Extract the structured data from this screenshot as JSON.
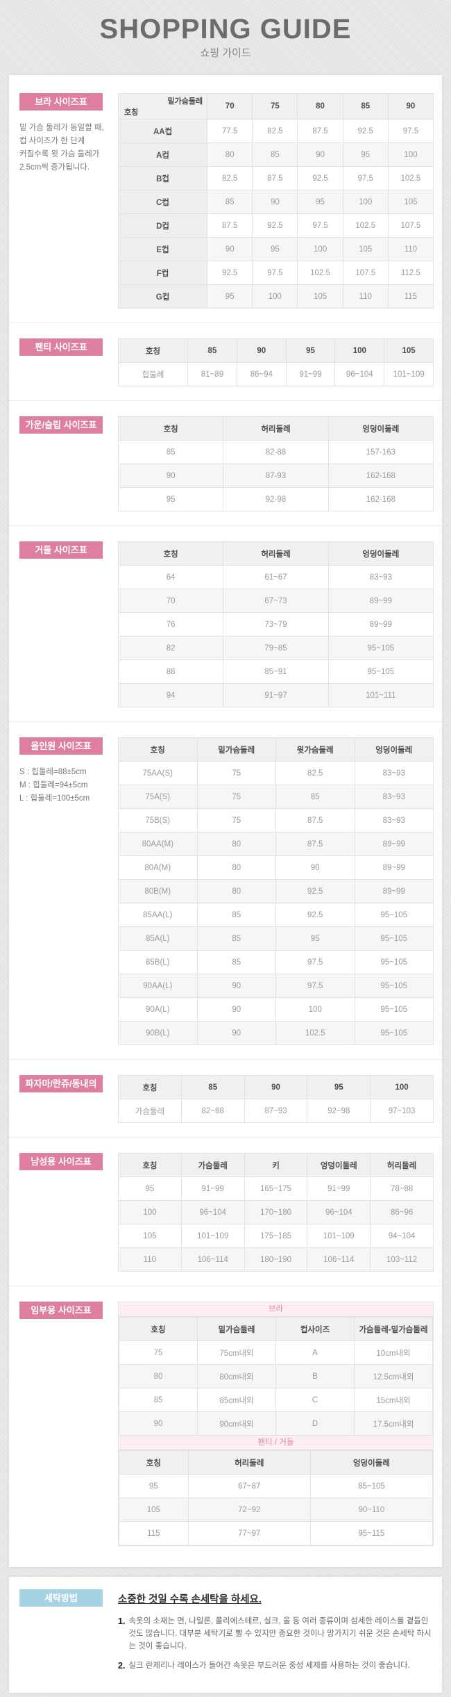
{
  "header": {
    "title": "SHOPPING GUIDE",
    "subtitle": "쇼핑 가이드"
  },
  "colors": {
    "accent_pink": "#dd7f9d",
    "accent_blue": "#a5d3e4",
    "band_pink_bg": "#fdeef4",
    "band_pink_text": "#db86a3"
  },
  "sections": {
    "bra": {
      "label": "브라 사이즈표",
      "note_lines": [
        "밑 가슴 둘레가 동일할 때,",
        "컵 사이즈가 한 단계",
        "커질수록 윗 가슴 둘레가",
        "2.5cm씩 증가됩니다."
      ],
      "table": {
        "corner": {
          "top": "밑가슴둘레",
          "bottom": "호칭"
        },
        "columns": [
          "70",
          "75",
          "80",
          "85",
          "90"
        ],
        "rows": [
          {
            "label": "AA컵",
            "values": [
              "77.5",
              "82.5",
              "87.5",
              "92.5",
              "97.5"
            ]
          },
          {
            "label": "A컵",
            "values": [
              "80",
              "85",
              "90",
              "95",
              "100"
            ]
          },
          {
            "label": "B컵",
            "values": [
              "82.5",
              "87.5",
              "92.5",
              "97.5",
              "102.5"
            ]
          },
          {
            "label": "C컵",
            "values": [
              "85",
              "90",
              "95",
              "100",
              "105"
            ]
          },
          {
            "label": "D컵",
            "values": [
              "87.5",
              "92.5",
              "97.5",
              "102.5",
              "107.5"
            ]
          },
          {
            "label": "E컵",
            "values": [
              "90",
              "95",
              "100",
              "105",
              "110"
            ]
          },
          {
            "label": "F컵",
            "values": [
              "92.5",
              "97.5",
              "102.5",
              "107.5",
              "112.5"
            ]
          },
          {
            "label": "G컵",
            "values": [
              "95",
              "100",
              "105",
              "110",
              "115"
            ]
          }
        ]
      }
    },
    "panty": {
      "label": "팬티 사이즈표",
      "table": {
        "columns": [
          "호칭",
          "85",
          "90",
          "95",
          "100",
          "105"
        ],
        "rows": [
          [
            "힙둘레",
            "81~89",
            "86~94",
            "91~99",
            "96~104",
            "101~109"
          ]
        ]
      }
    },
    "gown": {
      "label": "가운/슬립 사이즈표",
      "table": {
        "columns": [
          "호칭",
          "허리둘레",
          "엉덩이둘레"
        ],
        "rows": [
          [
            "85",
            "82-88",
            "157-163"
          ],
          [
            "90",
            "87-93",
            "162-168"
          ],
          [
            "95",
            "92-98",
            "162-168"
          ]
        ]
      }
    },
    "girdle": {
      "label": "거들 사이즈표",
      "table": {
        "columns": [
          "호칭",
          "허리둘레",
          "엉덩이둘레"
        ],
        "rows": [
          [
            "64",
            "61~67",
            "83~93"
          ],
          [
            "70",
            "67~73",
            "89~99"
          ],
          [
            "76",
            "73~79",
            "89~99"
          ],
          [
            "82",
            "79~85",
            "95~105"
          ],
          [
            "88",
            "85~91",
            "95~105"
          ],
          [
            "94",
            "91~97",
            "101~111"
          ]
        ]
      }
    },
    "allinone": {
      "label": "올인원 사이즈표",
      "note_lines": [
        "S : 힙둘레=88±5cm",
        "M : 힙둘레=94±5cm",
        "L : 힙둘레=100±5cm"
      ],
      "table": {
        "columns": [
          "호칭",
          "밑가슴둘레",
          "윗가슴둘레",
          "엉덩이둘레"
        ],
        "rows": [
          [
            "75AA(S)",
            "75",
            "82.5",
            "83~93"
          ],
          [
            "75A(S)",
            "75",
            "85",
            "83~93"
          ],
          [
            "75B(S)",
            "75",
            "87.5",
            "83~93"
          ],
          [
            "80AA(M)",
            "80",
            "87.5",
            "89~99"
          ],
          [
            "80A(M)",
            "80",
            "90",
            "89~99"
          ],
          [
            "80B(M)",
            "80",
            "92.5",
            "89~99"
          ],
          [
            "85AA(L)",
            "85",
            "92.5",
            "95~105"
          ],
          [
            "85A(L)",
            "85",
            "95",
            "95~105"
          ],
          [
            "85B(L)",
            "85",
            "97.5",
            "95~105"
          ],
          [
            "90AA(L)",
            "90",
            "97.5",
            "95~105"
          ],
          [
            "90A(L)",
            "90",
            "100",
            "95~105"
          ],
          [
            "90B(L)",
            "90",
            "102.5",
            "95~105"
          ]
        ]
      }
    },
    "pajama": {
      "label": "파자마/란쥬/동내의",
      "table": {
        "columns": [
          "호칭",
          "85",
          "90",
          "95",
          "100"
        ],
        "rows": [
          [
            "가슴둘레",
            "82~88",
            "87~93",
            "92~98",
            "97~103"
          ]
        ]
      }
    },
    "mens": {
      "label": "남성용 사이즈표",
      "table": {
        "columns": [
          "호칭",
          "가슴둘레",
          "키",
          "엉덩이둘레",
          "허리둘레"
        ],
        "rows": [
          [
            "95",
            "91~99",
            "165~175",
            "91~99",
            "78~88"
          ],
          [
            "100",
            "96~104",
            "170~180",
            "96~104",
            "86~96"
          ],
          [
            "105",
            "101~109",
            "175~185",
            "101~109",
            "94~104"
          ],
          [
            "110",
            "106~114",
            "180~190",
            "106~114",
            "103~112"
          ]
        ]
      }
    },
    "maternity": {
      "label": "임부용 사이즈표",
      "band1": "브라",
      "table1": {
        "columns": [
          "호칭",
          "밑가슴둘레",
          "컵사이즈",
          "가슴둘레-밑가슴둘레"
        ],
        "rows": [
          [
            "75",
            "75cm내외",
            "A",
            "10cm내외"
          ],
          [
            "80",
            "80cm내외",
            "B",
            "12.5cm내외"
          ],
          [
            "85",
            "85cm내외",
            "C",
            "15cm내외"
          ],
          [
            "90",
            "90cm내외",
            "D",
            "17.5cm내외"
          ]
        ]
      },
      "band2": "팬티 / 거들",
      "table2": {
        "columns": [
          "호칭",
          "허리둘레",
          "엉덩이둘레"
        ],
        "rows": [
          [
            "95",
            "67~87",
            "85~105"
          ],
          [
            "105",
            "72~92",
            "90~110"
          ],
          [
            "115",
            "77~97",
            "95~115"
          ]
        ]
      }
    },
    "washing": {
      "label": "세탁방법",
      "title": "소중한 것일 수록 손세탁을 하세요.",
      "items": [
        {
          "no": "1.",
          "text": "속옷의 소재는 면, 나일론, 폴리에스테르, 실크, 울 등 여러 종류이며 섬세한 레이스를 곁들인 것도 많습니다. 대부분 세탁기로 빨 수 있지만 중요한 것이나 망가지기 쉬운 것은 손세탁 하시는 것이 좋습니다."
        },
        {
          "no": "2.",
          "text": "실크 란제리나 레이스가 들어간 속옷은 부드러운 중성 세제를 사용하는 것이 좋습니다."
        }
      ]
    }
  }
}
